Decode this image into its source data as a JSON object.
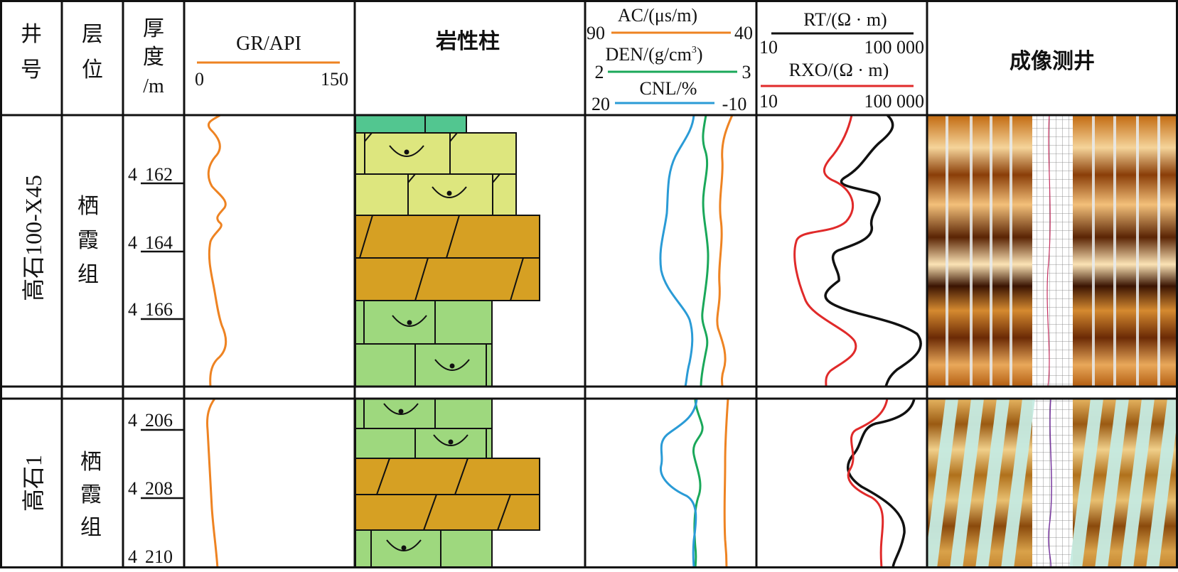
{
  "header": {
    "well_no": [
      "井",
      "号"
    ],
    "formation": [
      "层",
      "位"
    ],
    "thickness": [
      "厚",
      "度",
      "/m"
    ],
    "gr": {
      "label": "GR/API",
      "min": "0",
      "max": "150"
    },
    "lithology": "岩性柱",
    "porosity": {
      "ac": {
        "label": "AC/(μs/m)",
        "left": "90",
        "right": "40"
      },
      "den": {
        "label": "DEN/(g/cm",
        "sup": "3",
        "close": ")",
        "left": "2",
        "right": "3"
      },
      "cnl": {
        "label": "CNL/%",
        "left": "20",
        "right": "-10"
      }
    },
    "resistivity": {
      "rt": {
        "label": "RT/(Ω · m)",
        "left": "10",
        "right": "100 000"
      },
      "rxo": {
        "label": "RXO/(Ω · m)",
        "left": "10",
        "right": "100 000"
      }
    },
    "imaging": "成像测井"
  },
  "wells": [
    {
      "name": "高石100-X45",
      "formation": [
        "栖",
        "霞",
        "组"
      ],
      "depths": [
        {
          "prefix": "4",
          "value": "162"
        },
        {
          "prefix": "4",
          "value": "164"
        },
        {
          "prefix": "4",
          "value": "166"
        }
      ]
    },
    {
      "name": "高石1",
      "formation": [
        "栖",
        "霞",
        "组"
      ],
      "depths": [
        {
          "prefix": "4",
          "value": "206"
        },
        {
          "prefix": "4",
          "value": "208"
        },
        {
          "prefix": "4",
          "value": "210"
        }
      ]
    }
  ],
  "colors": {
    "gr": "#ee8322",
    "ac": "#ee8322",
    "den": "#1aa85a",
    "cnl": "#2a9bd6",
    "rt": "#111111",
    "rxo": "#e02a2a",
    "dolomite": "#d6a023",
    "limestone_light": "#dde67e",
    "limestone_green": "#9ed87e",
    "top_green": "#52c690"
  }
}
